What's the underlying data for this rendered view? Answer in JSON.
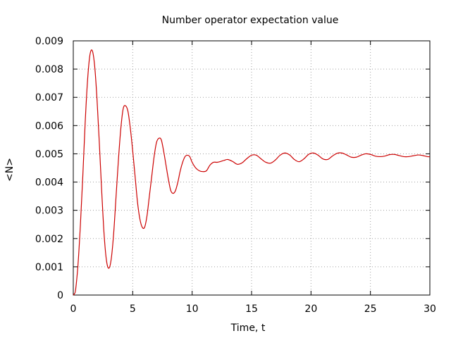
{
  "chart_data": {
    "type": "line",
    "title": "Number operator expectation value",
    "xlabel": "Time, t",
    "ylabel": "<N>",
    "xlim": [
      0,
      30
    ],
    "ylim": [
      0,
      0.009
    ],
    "x_ticks": [
      "0",
      "5",
      "10",
      "15",
      "20",
      "25",
      "30"
    ],
    "y_ticks": [
      "0",
      "0.001",
      "0.002",
      "0.003",
      "0.004",
      "0.005",
      "0.006",
      "0.007",
      "0.008",
      "0.009"
    ],
    "grid": true,
    "line_color": "#cc0000",
    "series": [
      {
        "x": [
          0,
          0.1,
          0.2,
          0.4,
          0.6,
          0.8,
          1.0,
          1.2,
          1.4,
          1.6,
          1.8,
          2.0,
          2.2,
          2.4,
          2.6,
          2.8,
          3.0,
          3.2,
          3.4,
          3.6,
          3.8,
          4.0,
          4.2,
          4.4,
          4.6,
          4.8,
          5.0,
          5.2,
          5.4,
          5.6,
          5.8,
          6.0,
          6.2,
          6.4,
          6.6,
          6.8,
          7.0,
          7.2,
          7.4,
          7.6,
          7.8,
          8.0,
          8.2,
          8.4,
          8.6,
          8.8,
          9.0,
          9.2,
          9.4,
          9.6,
          9.8,
          10.0,
          10.3,
          10.6,
          10.9,
          11.2,
          11.5,
          11.8,
          12.1,
          12.4,
          12.7,
          13.0,
          13.4,
          13.8,
          14.2,
          14.6,
          15.0,
          15.4,
          15.8,
          16.2,
          16.6,
          17.0,
          17.4,
          17.8,
          18.2,
          18.6,
          19.0,
          19.4,
          19.8,
          20.2,
          20.6,
          21.0,
          21.4,
          21.8,
          22.2,
          22.6,
          23.0,
          23.4,
          23.8,
          24.2,
          24.6,
          25.0,
          25.4,
          25.8,
          26.2,
          26.6,
          27.0,
          27.4,
          27.8,
          28.2,
          28.6,
          29.0,
          29.4,
          29.8,
          30.0
        ],
        "y": [
          0.0,
          5e-05,
          0.0002,
          0.0011,
          0.0025,
          0.0042,
          0.0061,
          0.0076,
          0.0085,
          0.00865,
          0.0081,
          0.0069,
          0.0053,
          0.0036,
          0.0021,
          0.0012,
          0.00095,
          0.0013,
          0.0022,
          0.0035,
          0.0048,
          0.0059,
          0.0066,
          0.0067,
          0.0065,
          0.0059,
          0.0051,
          0.0042,
          0.0033,
          0.0027,
          0.0024,
          0.0024,
          0.0028,
          0.0035,
          0.0042,
          0.0049,
          0.0054,
          0.00555,
          0.0055,
          0.0051,
          0.0046,
          0.0041,
          0.0037,
          0.0036,
          0.0037,
          0.004,
          0.0044,
          0.0047,
          0.0049,
          0.00495,
          0.0049,
          0.0047,
          0.0045,
          0.0044,
          0.00437,
          0.0044,
          0.0046,
          0.0047,
          0.0047,
          0.00473,
          0.00477,
          0.0048,
          0.00473,
          0.00463,
          0.00468,
          0.00483,
          0.00495,
          0.00495,
          0.00482,
          0.0047,
          0.00467,
          0.00478,
          0.00495,
          0.00503,
          0.00496,
          0.0048,
          0.00472,
          0.00482,
          0.00498,
          0.00503,
          0.00495,
          0.00482,
          0.0048,
          0.00492,
          0.00502,
          0.00503,
          0.00496,
          0.00488,
          0.00488,
          0.00495,
          0.005,
          0.00498,
          0.00492,
          0.0049,
          0.00492,
          0.00497,
          0.00498,
          0.00494,
          0.0049,
          0.0049,
          0.00493,
          0.00496,
          0.00494,
          0.0049,
          0.0049
        ]
      }
    ]
  }
}
